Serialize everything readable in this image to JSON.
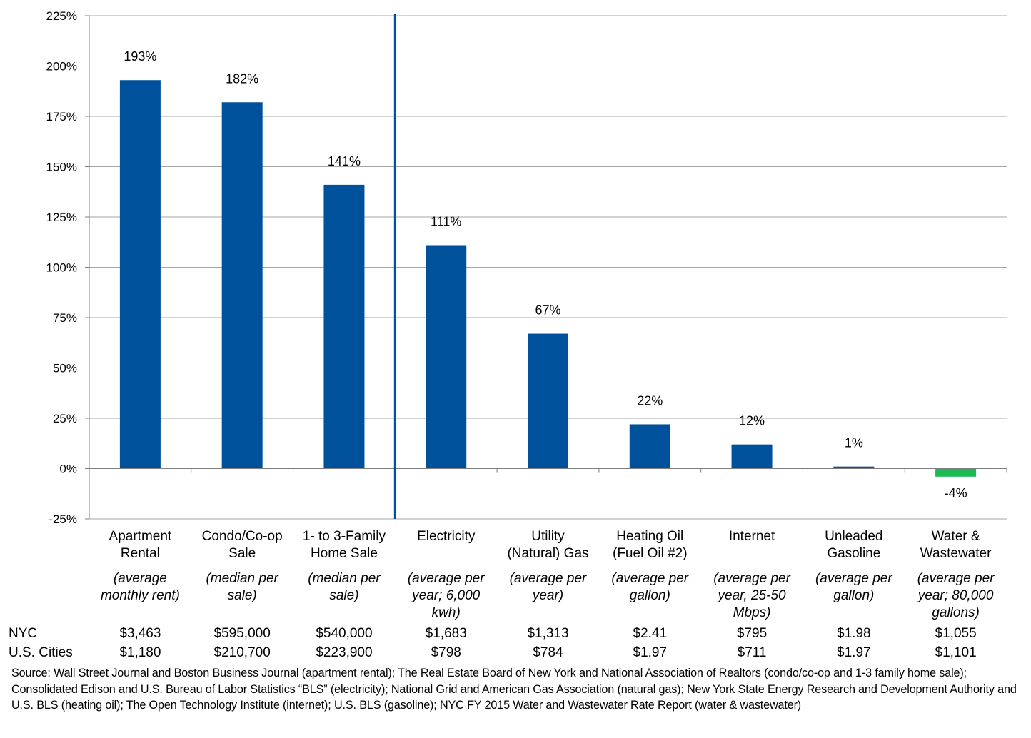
{
  "chart_data": {
    "type": "bar",
    "categories": [
      {
        "name": [
          "Apartment",
          "Rental"
        ],
        "note": [
          "(average",
          "monthly rent)"
        ],
        "nyc": "$3,463",
        "us": "$1,180"
      },
      {
        "name": [
          "Condo/Co-op",
          "Sale"
        ],
        "note": [
          "(median per",
          "sale)"
        ],
        "nyc": "$595,000",
        "us": "$210,700"
      },
      {
        "name": [
          "1- to 3-Family",
          "Home Sale"
        ],
        "note": [
          "(median per",
          "sale)"
        ],
        "nyc": "$540,000",
        "us": "$223,900"
      },
      {
        "name": [
          "Electricity"
        ],
        "note": [
          "(average per",
          "year; 6,000",
          "kwh)"
        ],
        "nyc": "$1,683",
        "us": "$798"
      },
      {
        "name": [
          "Utility",
          "(Natural) Gas"
        ],
        "note": [
          "(average per",
          "year)"
        ],
        "nyc": "$1,313",
        "us": "$784"
      },
      {
        "name": [
          "Heating Oil",
          "(Fuel Oil #2)"
        ],
        "note": [
          "(average per",
          "gallon)"
        ],
        "nyc": "$2.41",
        "us": "$1.97"
      },
      {
        "name": [
          "Internet"
        ],
        "note": [
          "(average per",
          "year, 25-50",
          "Mbps)"
        ],
        "nyc": "$795",
        "us": "$711"
      },
      {
        "name": [
          "Unleaded",
          "Gasoline"
        ],
        "note": [
          "(average per",
          "gallon)"
        ],
        "nyc": "$1.98",
        "us": "$1.97"
      },
      {
        "name": [
          "Water &",
          "Wastewater"
        ],
        "note": [
          "(average per",
          "year; 80,000",
          "gallons)"
        ],
        "nyc": "$1,055",
        "us": "$1,101"
      }
    ],
    "values": [
      193,
      182,
      141,
      111,
      67,
      22,
      12,
      1,
      -4
    ],
    "value_labels": [
      "193%",
      "182%",
      "141%",
      "111%",
      "67%",
      "22%",
      "12%",
      "1%",
      "-4%"
    ],
    "ylim": [
      -25,
      225
    ],
    "yticks": [
      -25,
      0,
      25,
      50,
      75,
      100,
      125,
      150,
      175,
      200,
      225
    ],
    "ytick_labels": [
      "-25%",
      "0%",
      "25%",
      "50%",
      "75%",
      "100%",
      "125%",
      "150%",
      "175%",
      "200%",
      "225%"
    ],
    "grid": true,
    "divider_after_index": 2,
    "colors": {
      "positive": "#00519B",
      "negative": "#1DB954",
      "grid": "#A6A6A6",
      "axis": "#7F7F7F",
      "divider": "#00519B"
    },
    "row_labels": {
      "nyc": "NYC",
      "us": "U.S. Cities"
    }
  },
  "source_text": "Source: Wall Street Journal and Boston Business Journal (apartment rental);  The Real Estate Board of New York and National Association of Realtors (condo/co-op and 1-3 family home sale); Consolidated Edison and U.S. Bureau of Labor Statistics “BLS” (electricity); National Grid and American Gas Association (natural  gas); New York State Energy Research and Development Authority and U.S. BLS (heating oil); The Open Technology Institute (internet);  U.S. BLS (gasoline); NYC FY 2015 Water and Wastewater Rate Report (water  & wastewater)"
}
